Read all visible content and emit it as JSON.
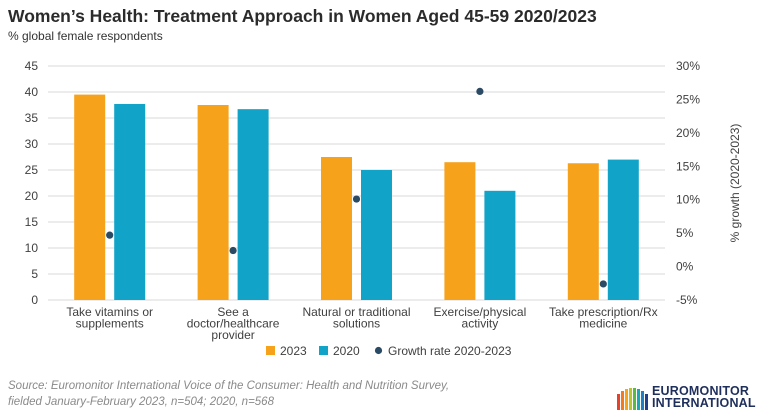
{
  "header": {
    "title": "Women’s Health: Treatment Approach in Women Aged 45-59 2020/2023",
    "subtitle": "% global female respondents"
  },
  "colors": {
    "bar_2023": "#f7a21b",
    "bar_2020": "#12a3c9",
    "growth_dot": "#2b4a63",
    "axis_text": "#404040",
    "gridline": "#d9d9d9"
  },
  "chart_data": {
    "type": "bar",
    "categories": [
      [
        "Take vitamins or",
        "supplements"
      ],
      [
        "See a",
        "doctor/healthcare",
        "provider"
      ],
      [
        "Natural or traditional",
        "solutions"
      ],
      [
        "Exercise/physical",
        "activity"
      ],
      [
        "Take prescription/Rx",
        "medicine"
      ]
    ],
    "series": [
      {
        "name": "2023",
        "axis": "left",
        "values": [
          39.5,
          37.5,
          27.5,
          26.5,
          26.3
        ]
      },
      {
        "name": "2020",
        "axis": "left",
        "values": [
          37.7,
          36.7,
          25.0,
          21.0,
          27.0
        ]
      },
      {
        "name": "Growth rate 2020-2023",
        "axis": "right",
        "kind": "scatter",
        "values": [
          4.7,
          2.4,
          10.1,
          26.2,
          -2.6
        ]
      }
    ],
    "ylim": [
      0,
      45
    ],
    "yticks": [
      "0",
      "5",
      "10",
      "15",
      "20",
      "25",
      "30",
      "35",
      "40",
      "45"
    ],
    "y2lim": [
      -5,
      30
    ],
    "y2ticks": [
      "-5%",
      "0%",
      "5%",
      "10%",
      "15%",
      "20%",
      "25%",
      "30%"
    ],
    "y2label": "% growth (2020-2023)",
    "grid": true,
    "legend_position": "bottom"
  },
  "footer": {
    "source_line1": "Source: Euromonitor International Voice of the Consumer: Health and Nutrition Survey,",
    "source_line2": "fielded January-February 2023, n=504; 2020, n=568",
    "logo_line1": "EUROMONITOR",
    "logo_line2": "INTERNATIONAL"
  }
}
